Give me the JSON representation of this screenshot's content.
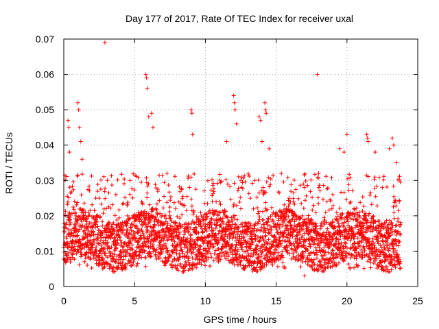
{
  "chart_data": {
    "type": "scatter",
    "title": "Day 177 of 2017, Rate Of TEC Index for receiver uxal",
    "xlabel": "GPS time / hours",
    "ylabel": "ROTI / TECUs",
    "xlim": [
      0,
      25
    ],
    "ylim": [
      0,
      0.07
    ],
    "xticks": [
      0,
      5,
      10,
      15,
      20,
      25
    ],
    "yticks": [
      0,
      0.01,
      0.02,
      0.03,
      0.04,
      0.05,
      0.06,
      0.07
    ],
    "xtick_labels": [
      "0",
      "5",
      "10",
      "15",
      "20",
      "25"
    ],
    "ytick_labels": [
      "0",
      "0.01",
      "0.02",
      "0.03",
      "0.04",
      "0.05",
      "0.06",
      "0.07"
    ],
    "grid": true,
    "marker": "+",
    "color": "#ff0000",
    "series": [
      {
        "points": [
          [
            0.1,
            0.012
          ],
          [
            0.2,
            0.018
          ],
          [
            0.3,
            0.047
          ],
          [
            0.35,
            0.045
          ],
          [
            0.4,
            0.038
          ],
          [
            0.5,
            0.015
          ],
          [
            0.8,
            0.021
          ],
          [
            1.0,
            0.052
          ],
          [
            1.05,
            0.05
          ],
          [
            1.1,
            0.045
          ],
          [
            1.2,
            0.041
          ],
          [
            1.3,
            0.036
          ],
          [
            1.6,
            0.019
          ],
          [
            2.0,
            0.017
          ],
          [
            2.5,
            0.025
          ],
          [
            2.9,
            0.069
          ],
          [
            3.0,
            0.022
          ],
          [
            3.5,
            0.018
          ],
          [
            4.0,
            0.016
          ],
          [
            4.5,
            0.02
          ],
          [
            5.0,
            0.014
          ],
          [
            5.5,
            0.024
          ],
          [
            5.8,
            0.06
          ],
          [
            5.85,
            0.059
          ],
          [
            5.9,
            0.056
          ],
          [
            6.0,
            0.048
          ],
          [
            6.2,
            0.049
          ],
          [
            6.3,
            0.045
          ],
          [
            6.5,
            0.022
          ],
          [
            7.0,
            0.018
          ],
          [
            7.5,
            0.02
          ],
          [
            8.0,
            0.016
          ],
          [
            8.5,
            0.023
          ],
          [
            9.0,
            0.05
          ],
          [
            9.05,
            0.049
          ],
          [
            9.1,
            0.043
          ],
          [
            9.5,
            0.019
          ],
          [
            10.0,
            0.017
          ],
          [
            10.5,
            0.021
          ],
          [
            11.0,
            0.024
          ],
          [
            11.5,
            0.041
          ],
          [
            12.0,
            0.054
          ],
          [
            12.05,
            0.052
          ],
          [
            12.1,
            0.05
          ],
          [
            12.2,
            0.046
          ],
          [
            12.5,
            0.022
          ],
          [
            13.0,
            0.018
          ],
          [
            13.5,
            0.03
          ],
          [
            13.8,
            0.048
          ],
          [
            13.9,
            0.047
          ],
          [
            14.0,
            0.041
          ],
          [
            14.2,
            0.052
          ],
          [
            14.25,
            0.05
          ],
          [
            14.3,
            0.049
          ],
          [
            14.5,
            0.039
          ],
          [
            15.0,
            0.02
          ],
          [
            15.5,
            0.018
          ],
          [
            16.0,
            0.024
          ],
          [
            16.5,
            0.017
          ],
          [
            17.0,
            0.003
          ],
          [
            17.5,
            0.019
          ],
          [
            17.9,
            0.06
          ],
          [
            18.0,
            0.032
          ],
          [
            18.5,
            0.021
          ],
          [
            19.0,
            0.026
          ],
          [
            19.5,
            0.039
          ],
          [
            19.8,
            0.038
          ],
          [
            20.0,
            0.043
          ],
          [
            20.5,
            0.022
          ],
          [
            21.0,
            0.017
          ],
          [
            21.4,
            0.043
          ],
          [
            21.45,
            0.042
          ],
          [
            21.5,
            0.041
          ],
          [
            22.0,
            0.038
          ],
          [
            22.5,
            0.028
          ],
          [
            23.0,
            0.039
          ],
          [
            23.2,
            0.042
          ],
          [
            23.3,
            0.04
          ],
          [
            23.5,
            0.035
          ],
          [
            23.7,
            0.024
          ]
        ],
        "density_band": {
          "description_values": [
            0.005,
            0.032
          ],
          "x_range": [
            0.0,
            23.8
          ]
        }
      }
    ]
  }
}
